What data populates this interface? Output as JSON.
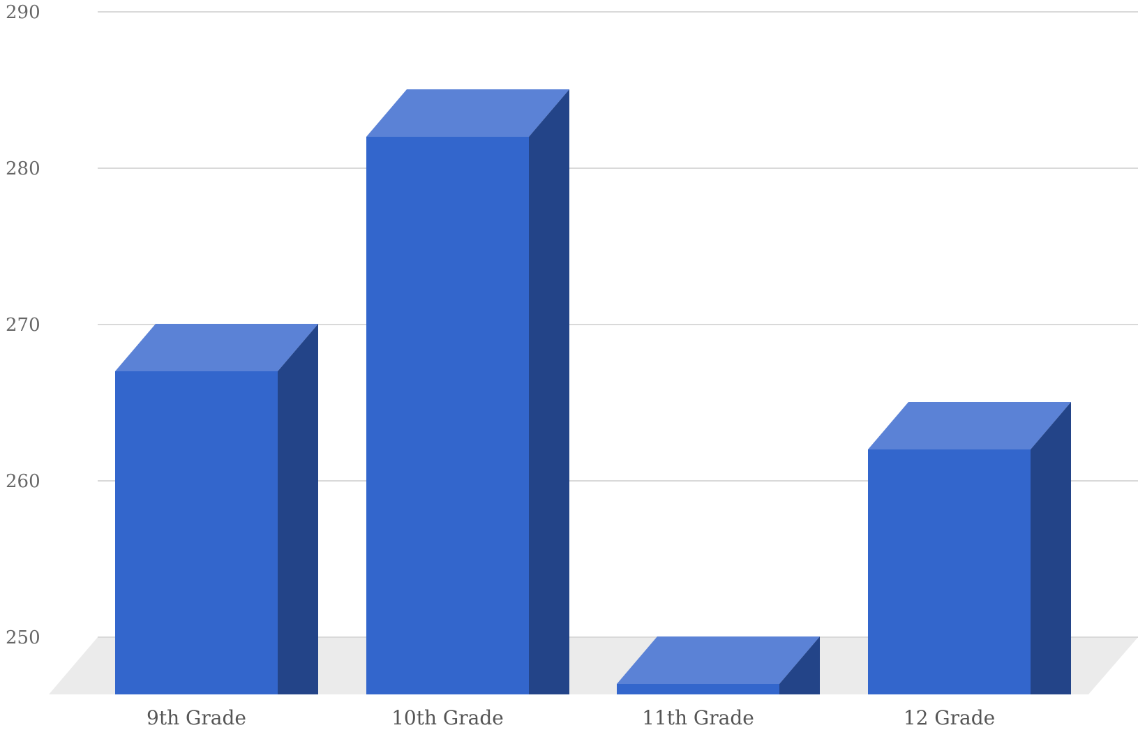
{
  "chart_data": {
    "type": "bar",
    "style": "3d",
    "categories": [
      "9th Grade",
      "10th Grade",
      "11th Grade",
      "12 Grade"
    ],
    "series": [
      {
        "values": [
          270,
          285,
          250,
          265
        ]
      }
    ],
    "title": "",
    "xlabel": "",
    "ylabel": "",
    "ylim": [
      250,
      290
    ],
    "yticks": [
      250,
      260,
      270,
      280,
      290
    ],
    "grid": true,
    "legend": "none",
    "colors": {
      "bar_front": "#3366cc",
      "bar_top": "#5b82d6",
      "bar_side": "#234488",
      "gridline": "#d9d9d9",
      "floor": "#ebebeb",
      "tick_text": "#666666",
      "category_text": "#555555"
    }
  }
}
